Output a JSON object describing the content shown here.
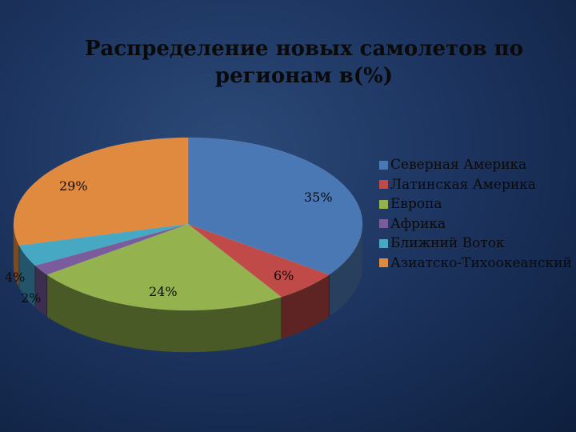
{
  "title_lines": [
    "Распределение новых самолетов по",
    "регионам в(%)"
  ],
  "chart_data": {
    "type": "pie",
    "title": "Распределение новых самолетов по регионам в(%)",
    "labels": [
      "Северная Америка",
      "Латинская Америка",
      "Европа",
      "Африка",
      "Ближний Воток",
      "Азиатско-Тихоокеанский"
    ],
    "values": [
      35,
      6,
      24,
      2,
      4,
      29
    ],
    "data_labels": [
      "35%",
      "6%",
      "24%",
      "2%",
      "4%",
      "29%"
    ],
    "colors": [
      "#4a78b4",
      "#bf4a47",
      "#94b24d",
      "#7a5c9c",
      "#47a8c4",
      "#e08a3f"
    ],
    "side_colors": [
      "#283f5e",
      "#5e2423",
      "#4a5a26",
      "#3c2e4e",
      "#23546a",
      "#7a4a20"
    ],
    "legend_position": "right",
    "style": "3d"
  }
}
